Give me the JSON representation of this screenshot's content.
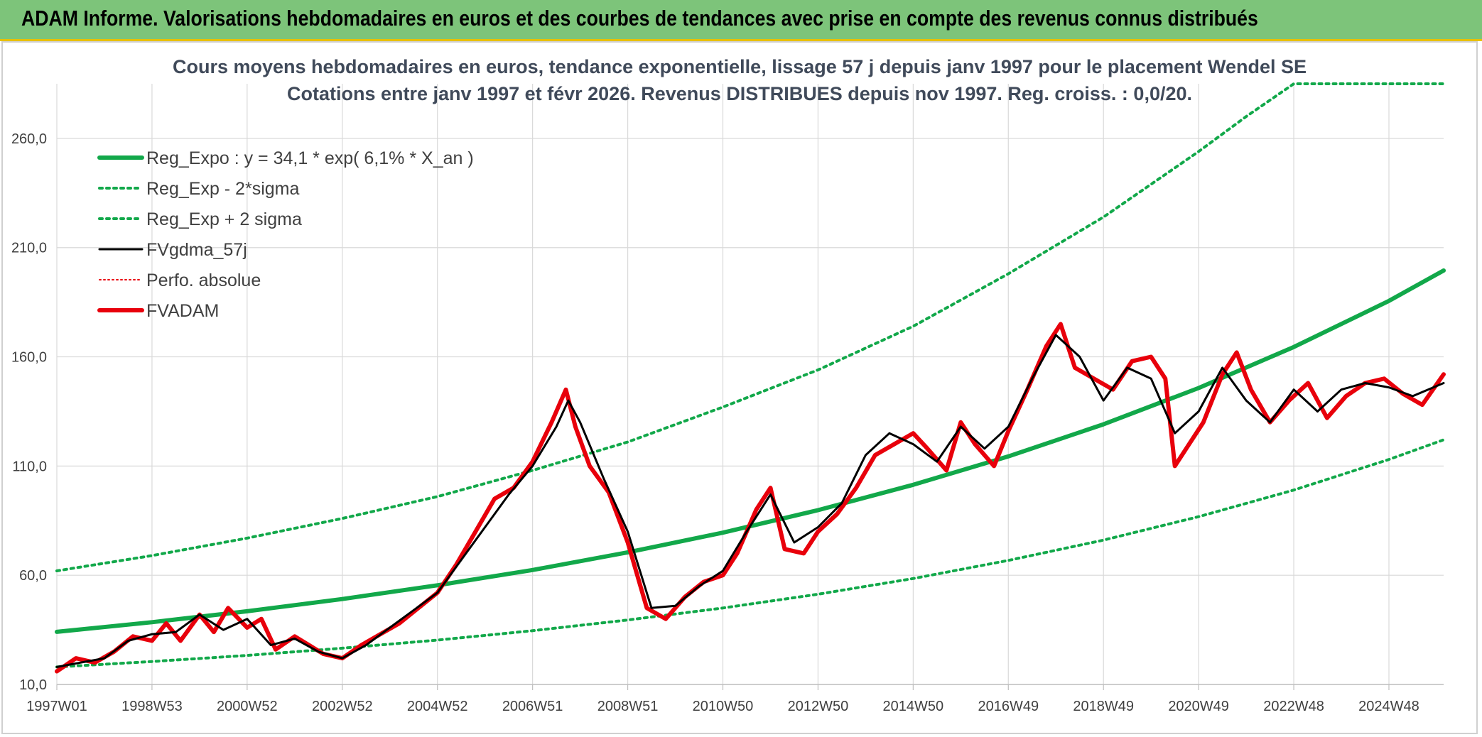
{
  "header": {
    "title": "ADAM Informe. Valorisations hebdomadaires en euros et des courbes de tendances avec prise en compte des revenus connus distribués"
  },
  "colors": {
    "banner": "#7dc47a",
    "reg_expo": "#12a84a",
    "fvgdma": "#000000",
    "fvadam": "#e8000b",
    "perfo": "#e8000b"
  },
  "chart_data": {
    "type": "line",
    "title": "Cours moyens hebdomadaires en euros, tendance exponentielle, lissage 57 j depuis janv 1997 pour le placement Wendel SE",
    "subtitle": "Cotations entre janv 1997 et févr 2026. Revenus DISTRIBUES depuis nov 1997. Reg. croiss. : 0,0/20.",
    "xlabel": "",
    "ylabel": "",
    "x_range": [
      1997.0,
      2026.15
    ],
    "ylim": [
      10,
      285
    ],
    "y_ticks": [
      10,
      60,
      110,
      160,
      210,
      260
    ],
    "y_tick_labels": [
      "10,0",
      "60,0",
      "110,0",
      "160,0",
      "210,0",
      "260,0"
    ],
    "x_ticks": [
      {
        "label": "1997W01",
        "x": 1997.0
      },
      {
        "label": "1998W53",
        "x": 1999.0
      },
      {
        "label": "2000W52",
        "x": 2001.0
      },
      {
        "label": "2002W52",
        "x": 2003.0
      },
      {
        "label": "2004W52",
        "x": 2005.0
      },
      {
        "label": "2006W51",
        "x": 2007.0
      },
      {
        "label": "2008W51",
        "x": 2009.0
      },
      {
        "label": "2010W50",
        "x": 2011.0
      },
      {
        "label": "2012W50",
        "x": 2013.0
      },
      {
        "label": "2014W50",
        "x": 2015.0
      },
      {
        "label": "2016W49",
        "x": 2017.0
      },
      {
        "label": "2018W49",
        "x": 2019.0
      },
      {
        "label": "2020W49",
        "x": 2021.0
      },
      {
        "label": "2022W48",
        "x": 2023.0
      },
      {
        "label": "2024W48",
        "x": 2025.0
      }
    ],
    "grid": true,
    "legend_position": "top-left",
    "series": [
      {
        "name": "Reg_Expo : y = 34,1 * exp( 6,1% *  X_an )",
        "style": "solid-thick",
        "color": "#12a84a",
        "points": [
          [
            1997,
            34.1
          ],
          [
            1999,
            38.5
          ],
          [
            2001,
            43.5
          ],
          [
            2003,
            49.1
          ],
          [
            2005,
            55.4
          ],
          [
            2007,
            62.4
          ],
          [
            2009,
            70.5
          ],
          [
            2011,
            79.5
          ],
          [
            2013,
            89.8
          ],
          [
            2015,
            101.4
          ],
          [
            2017,
            114.4
          ],
          [
            2019,
            129.1
          ],
          [
            2021,
            145.7
          ],
          [
            2023,
            164.5
          ],
          [
            2025,
            185.6
          ],
          [
            2026.15,
            199.5
          ]
        ]
      },
      {
        "name": "Reg_Exp - 2*sigma",
        "style": "dotted",
        "color": "#12a84a",
        "points": [
          [
            1997,
            18.0
          ],
          [
            1999,
            20.5
          ],
          [
            2001,
            23.3
          ],
          [
            2003,
            26.6
          ],
          [
            2005,
            30.3
          ],
          [
            2007,
            34.6
          ],
          [
            2009,
            39.5
          ],
          [
            2011,
            45.0
          ],
          [
            2013,
            51.3
          ],
          [
            2015,
            58.5
          ],
          [
            2017,
            66.8
          ],
          [
            2019,
            76.1
          ],
          [
            2021,
            86.8
          ],
          [
            2023,
            99.0
          ],
          [
            2025,
            113.0
          ],
          [
            2026.15,
            122.0
          ]
        ]
      },
      {
        "name": "Reg_Exp + 2 sigma",
        "style": "dotted",
        "color": "#12a84a",
        "points": [
          [
            1997,
            62.0
          ],
          [
            1999,
            69.0
          ],
          [
            2001,
            77.0
          ],
          [
            2003,
            86.0
          ],
          [
            2005,
            96.0
          ],
          [
            2007,
            108.0
          ],
          [
            2009,
            121.0
          ],
          [
            2011,
            137.0
          ],
          [
            2013,
            154.0
          ],
          [
            2015,
            174.0
          ],
          [
            2017,
            198.0
          ],
          [
            2019,
            224.0
          ],
          [
            2021,
            254.0
          ],
          [
            2022,
            270.0
          ],
          [
            2023,
            285.0
          ],
          [
            2026.15,
            285.0
          ]
        ]
      },
      {
        "name": "FVgdma_57j",
        "style": "solid",
        "color": "#000000",
        "points": [
          [
            1997,
            18
          ],
          [
            1997.5,
            20
          ],
          [
            1998,
            22
          ],
          [
            1998.5,
            30
          ],
          [
            1999,
            33
          ],
          [
            1999.5,
            34
          ],
          [
            2000,
            42
          ],
          [
            2000.5,
            35
          ],
          [
            2001,
            40
          ],
          [
            2001.5,
            28
          ],
          [
            2002,
            31
          ],
          [
            2002.5,
            25
          ],
          [
            2003,
            22
          ],
          [
            2003.5,
            28
          ],
          [
            2004,
            36
          ],
          [
            2004.5,
            44
          ],
          [
            2005,
            52
          ],
          [
            2005.5,
            67
          ],
          [
            2006,
            82
          ],
          [
            2006.5,
            97
          ],
          [
            2007,
            110
          ],
          [
            2007.5,
            128
          ],
          [
            2007.75,
            140
          ],
          [
            2008,
            130
          ],
          [
            2008.5,
            104
          ],
          [
            2009,
            80
          ],
          [
            2009.5,
            45
          ],
          [
            2010,
            46
          ],
          [
            2010.5,
            55
          ],
          [
            2011,
            62
          ],
          [
            2011.5,
            80
          ],
          [
            2012,
            97
          ],
          [
            2012.5,
            75
          ],
          [
            2013,
            82
          ],
          [
            2013.5,
            93
          ],
          [
            2014,
            115
          ],
          [
            2014.5,
            125
          ],
          [
            2015,
            120
          ],
          [
            2015.5,
            112
          ],
          [
            2016,
            128
          ],
          [
            2016.5,
            118
          ],
          [
            2017,
            128
          ],
          [
            2017.5,
            150
          ],
          [
            2018,
            170
          ],
          [
            2018.5,
            160
          ],
          [
            2019,
            140
          ],
          [
            2019.5,
            155
          ],
          [
            2020,
            150
          ],
          [
            2020.5,
            125
          ],
          [
            2021,
            135
          ],
          [
            2021.5,
            155
          ],
          [
            2022,
            140
          ],
          [
            2022.5,
            130
          ],
          [
            2023,
            145
          ],
          [
            2023.5,
            135
          ],
          [
            2024,
            145
          ],
          [
            2024.5,
            148
          ],
          [
            2025,
            146
          ],
          [
            2025.5,
            142
          ],
          [
            2026.15,
            148
          ]
        ]
      },
      {
        "name": "Perfo. absolue",
        "style": "dotted-thin",
        "color": "#e8000b",
        "points": []
      },
      {
        "name": "FVADAM",
        "style": "solid-thick",
        "color": "#e8000b",
        "points": [
          [
            1997,
            16
          ],
          [
            1997.4,
            22
          ],
          [
            1997.8,
            20
          ],
          [
            1998.2,
            25
          ],
          [
            1998.6,
            32
          ],
          [
            1999,
            30
          ],
          [
            1999.3,
            38
          ],
          [
            1999.6,
            30
          ],
          [
            2000,
            42
          ],
          [
            2000.3,
            34
          ],
          [
            2000.6,
            45
          ],
          [
            2001,
            36
          ],
          [
            2001.3,
            40
          ],
          [
            2001.6,
            26
          ],
          [
            2002,
            32
          ],
          [
            2002.3,
            28
          ],
          [
            2002.6,
            24
          ],
          [
            2003,
            22
          ],
          [
            2003.4,
            28
          ],
          [
            2003.8,
            33
          ],
          [
            2004.2,
            38
          ],
          [
            2004.6,
            45
          ],
          [
            2005,
            52
          ],
          [
            2005.4,
            65
          ],
          [
            2005.8,
            80
          ],
          [
            2006.2,
            95
          ],
          [
            2006.6,
            100
          ],
          [
            2007,
            112
          ],
          [
            2007.4,
            130
          ],
          [
            2007.7,
            145
          ],
          [
            2007.9,
            128
          ],
          [
            2008.2,
            110
          ],
          [
            2008.6,
            98
          ],
          [
            2009,
            75
          ],
          [
            2009.4,
            45
          ],
          [
            2009.8,
            40
          ],
          [
            2010.2,
            50
          ],
          [
            2010.6,
            57
          ],
          [
            2011,
            60
          ],
          [
            2011.3,
            70
          ],
          [
            2011.7,
            90
          ],
          [
            2012,
            100
          ],
          [
            2012.3,
            72
          ],
          [
            2012.7,
            70
          ],
          [
            2013,
            80
          ],
          [
            2013.4,
            88
          ],
          [
            2013.8,
            100
          ],
          [
            2014.2,
            115
          ],
          [
            2014.6,
            120
          ],
          [
            2015,
            125
          ],
          [
            2015.3,
            118
          ],
          [
            2015.7,
            108
          ],
          [
            2016,
            130
          ],
          [
            2016.3,
            120
          ],
          [
            2016.7,
            110
          ],
          [
            2017,
            126
          ],
          [
            2017.4,
            145
          ],
          [
            2017.8,
            165
          ],
          [
            2018.1,
            175
          ],
          [
            2018.4,
            155
          ],
          [
            2018.8,
            150
          ],
          [
            2019.2,
            145
          ],
          [
            2019.6,
            158
          ],
          [
            2020,
            160
          ],
          [
            2020.3,
            150
          ],
          [
            2020.5,
            110
          ],
          [
            2020.8,
            120
          ],
          [
            2021.1,
            130
          ],
          [
            2021.5,
            152
          ],
          [
            2021.8,
            162
          ],
          [
            2022.1,
            145
          ],
          [
            2022.5,
            130
          ],
          [
            2022.9,
            140
          ],
          [
            2023.3,
            148
          ],
          [
            2023.7,
            132
          ],
          [
            2024.1,
            142
          ],
          [
            2024.5,
            148
          ],
          [
            2024.9,
            150
          ],
          [
            2025.3,
            143
          ],
          [
            2025.7,
            138
          ],
          [
            2026.15,
            152
          ]
        ]
      }
    ]
  }
}
